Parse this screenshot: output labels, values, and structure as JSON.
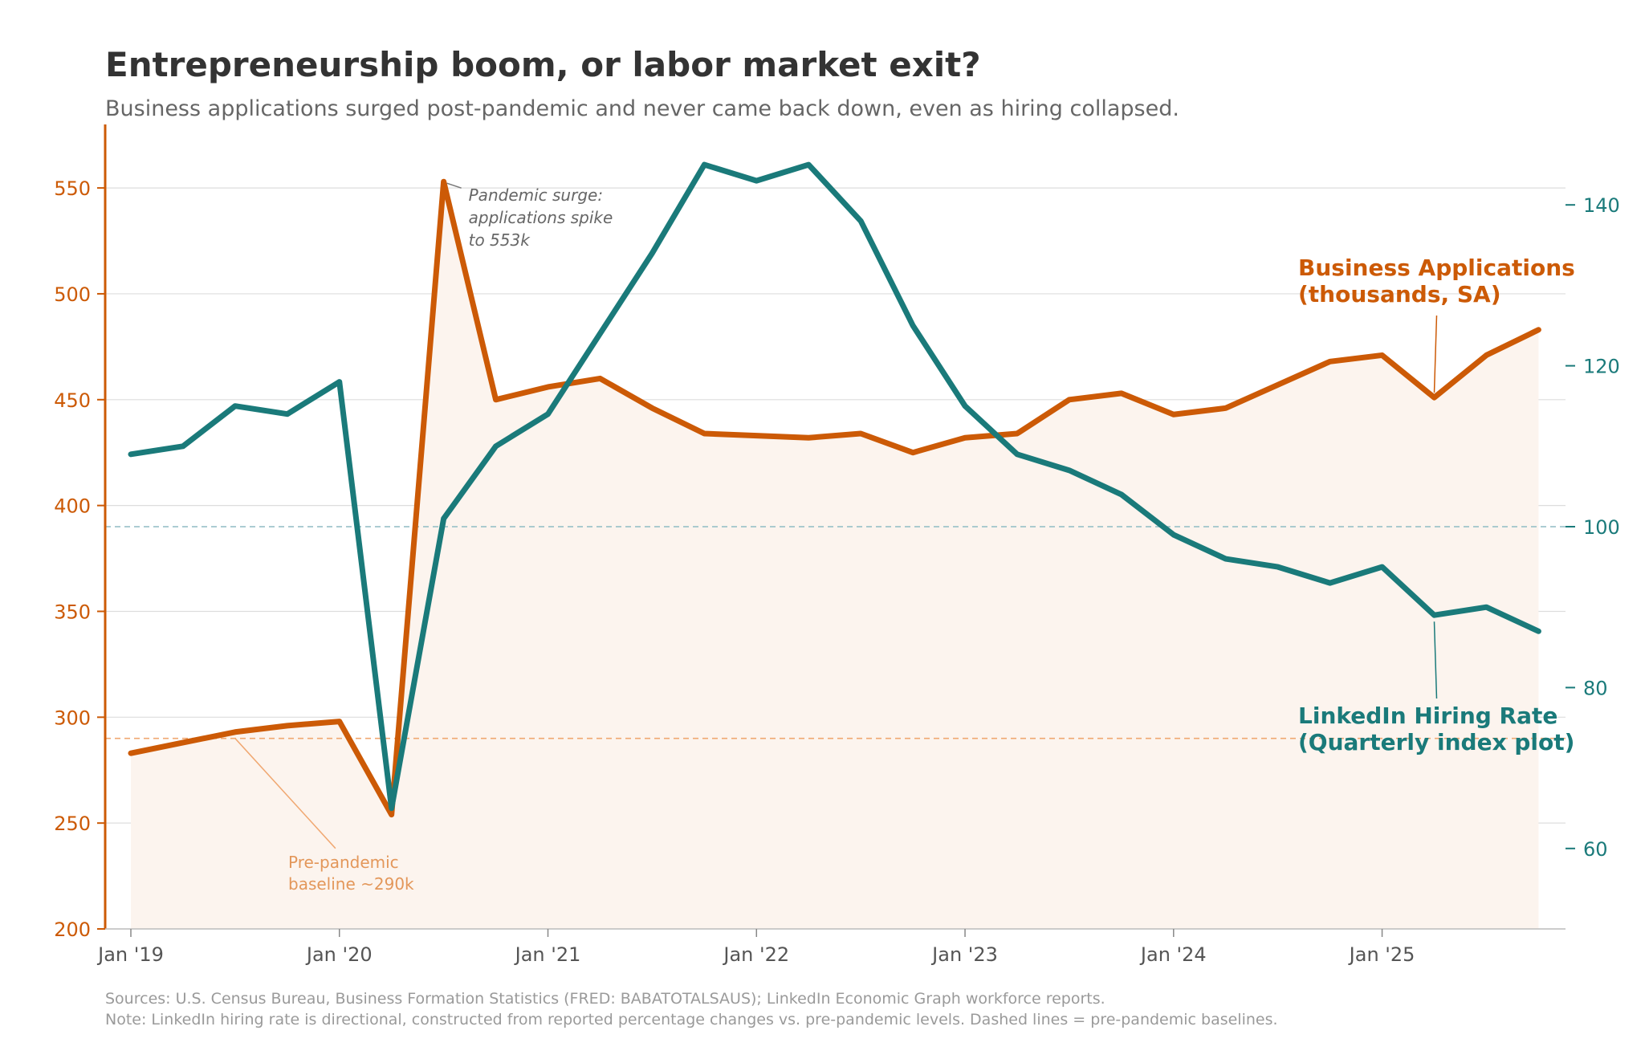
{
  "chart_data": {
    "type": "line",
    "title": "Entrepreneurship boom, or labor market exit?",
    "subtitle": "Business applications surged post-pandemic and never came back down, even as hiring collapsed.",
    "x_tick_labels": [
      "Jan '19",
      "Jan '20",
      "Jan '21",
      "Jan '22",
      "Jan '23",
      "Jan '24",
      "Jan '25"
    ],
    "x_quarters": [
      "2019Q1",
      "2019Q2",
      "2019Q3",
      "2019Q4",
      "2020Q1",
      "2020Q2",
      "2020Q3",
      "2020Q4",
      "2021Q1",
      "2021Q2",
      "2021Q3",
      "2021Q4",
      "2022Q1",
      "2022Q2",
      "2022Q3",
      "2022Q4",
      "2023Q1",
      "2023Q2",
      "2023Q3",
      "2023Q4",
      "2024Q1",
      "2024Q2",
      "2024Q3",
      "2024Q4",
      "2025Q1",
      "2025Q2",
      "2025Q3",
      "2025Q4"
    ],
    "y_left": {
      "min": 200,
      "max": 580,
      "ticks": [
        200,
        250,
        300,
        350,
        400,
        450,
        500,
        550
      ]
    },
    "y_right": {
      "min": 50,
      "max": 150,
      "ticks": [
        60,
        80,
        100,
        120,
        140
      ]
    },
    "series": [
      {
        "name": "Business Applications (thousands, SA)",
        "label_line1": "Business Applications",
        "label_line2": "(thousands, SA)",
        "axis": "left",
        "color": "#cc5a06",
        "fill": "#fcf4ee",
        "values": [
          283,
          288,
          293,
          296,
          298,
          254,
          553,
          450,
          456,
          460,
          446,
          434,
          433,
          432,
          434,
          425,
          432,
          434,
          450,
          453,
          443,
          446,
          457,
          468,
          471,
          451,
          471,
          483
        ]
      },
      {
        "name": "LinkedIn Hiring Rate (Quarterly index plot)",
        "label_line1": "LinkedIn Hiring Rate",
        "label_line2": "(Quarterly index plot)",
        "axis": "right",
        "color": "#1a7a7a",
        "values": [
          109,
          110,
          115,
          114,
          118,
          65,
          101,
          110,
          114,
          124,
          134,
          145,
          143,
          145,
          138,
          125,
          115,
          109,
          107,
          104,
          99,
          96,
          95,
          93,
          95,
          89,
          90,
          87
        ]
      }
    ],
    "baselines": [
      {
        "axis": "left",
        "value": 290,
        "color": "#f0a872"
      },
      {
        "axis": "right",
        "value": 100,
        "color": "#8fbcc4"
      }
    ],
    "annotations": {
      "surge": {
        "lines": [
          "Pandemic surge:",
          "applications spike",
          "to 553k"
        ],
        "point_index": 6
      },
      "baseline": {
        "lines": [
          "Pre-pandemic",
          "baseline ~290k"
        ],
        "point_index": 2,
        "value": 290
      }
    },
    "footnote_lines": [
      "Sources: U.S. Census Bureau, Business Formation Statistics (FRED: BABATOTALSAUS); LinkedIn Economic Graph workforce reports.",
      "Note: LinkedIn hiring rate is directional, constructed from reported percentage changes vs. pre-pandemic levels. Dashed lines = pre-pandemic baselines."
    ],
    "grid": true
  }
}
